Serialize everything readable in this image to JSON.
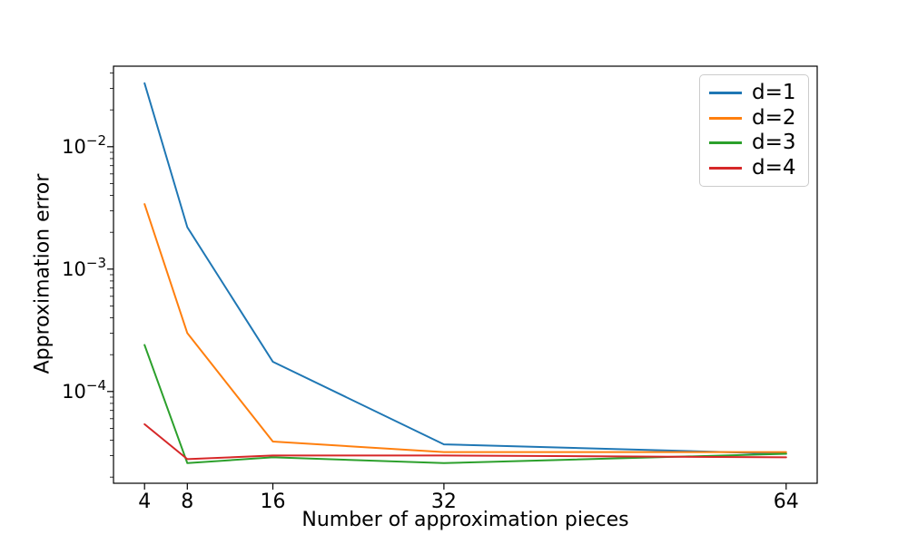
{
  "chart_data": {
    "type": "line",
    "title": "",
    "xlabel": "Number of approximation pieces",
    "ylabel": "Approximation error",
    "x_scale": "linear",
    "y_scale": "log",
    "xlim": [
      1.1,
      66.9
    ],
    "ylim": [
      1.78e-05,
      0.0455
    ],
    "grid": false,
    "x": [
      4,
      8,
      16,
      32,
      64
    ],
    "x_tick_labels": [
      "4",
      "8",
      "16",
      "32",
      "64"
    ],
    "y_ticks": [
      {
        "value": 0.01,
        "label": "10⁻²",
        "base": "10",
        "exponent": "−2"
      },
      {
        "value": 0.001,
        "label": "10⁻³",
        "base": "10",
        "exponent": "−3"
      },
      {
        "value": 0.0001,
        "label": "10⁻⁴",
        "base": "10",
        "exponent": "−4"
      }
    ],
    "legend": {
      "position": "upper right",
      "border_color": "#cccccc"
    },
    "series": [
      {
        "name": "d=1",
        "color": "#1f77b4",
        "values": [
          0.033,
          0.0022,
          0.000175,
          3.7e-05,
          3.1e-05
        ]
      },
      {
        "name": "d=2",
        "color": "#ff7f0e",
        "values": [
          0.0034,
          0.0003,
          3.9e-05,
          3.2e-05,
          3.2e-05
        ]
      },
      {
        "name": "d=3",
        "color": "#2ca02c",
        "values": [
          0.00024,
          2.6e-05,
          2.9e-05,
          2.6e-05,
          3.1e-05
        ]
      },
      {
        "name": "d=4",
        "color": "#d62728",
        "values": [
          5.4e-05,
          2.8e-05,
          3e-05,
          3e-05,
          2.9e-05
        ]
      }
    ],
    "axis_color": "#000000",
    "background": "#ffffff"
  }
}
